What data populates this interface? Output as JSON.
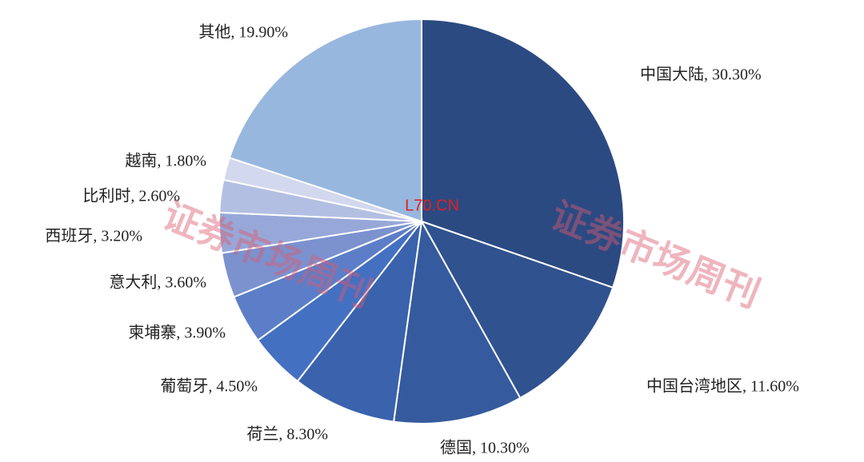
{
  "chart_data": {
    "type": "pie",
    "values": [
      30.3,
      11.6,
      10.3,
      8.3,
      4.5,
      3.9,
      3.6,
      3.2,
      2.6,
      1.8,
      19.9
    ],
    "value_labels": [
      "中国大陆, 30.30%",
      "中国台湾地区, 11.60%",
      "德国, 10.30%",
      "荷兰, 8.30%",
      "葡萄牙, 4.50%",
      "柬埔寨, 3.90%",
      "意大利, 3.60%",
      "西班牙, 3.20%",
      "比利时, 2.60%",
      "越南, 1.80%",
      "其他, 19.90%"
    ],
    "colors": [
      "#2b4a82",
      "#30528f",
      "#355b9e",
      "#3a62ad",
      "#4470c2",
      "#5c7ec8",
      "#7b92cf",
      "#97a8d8",
      "#b3bfe2",
      "#d2d8ee",
      "#97b7df"
    ],
    "annotations": [
      "证券市场周刊",
      "证券市场周刊",
      "L70.CN"
    ]
  }
}
